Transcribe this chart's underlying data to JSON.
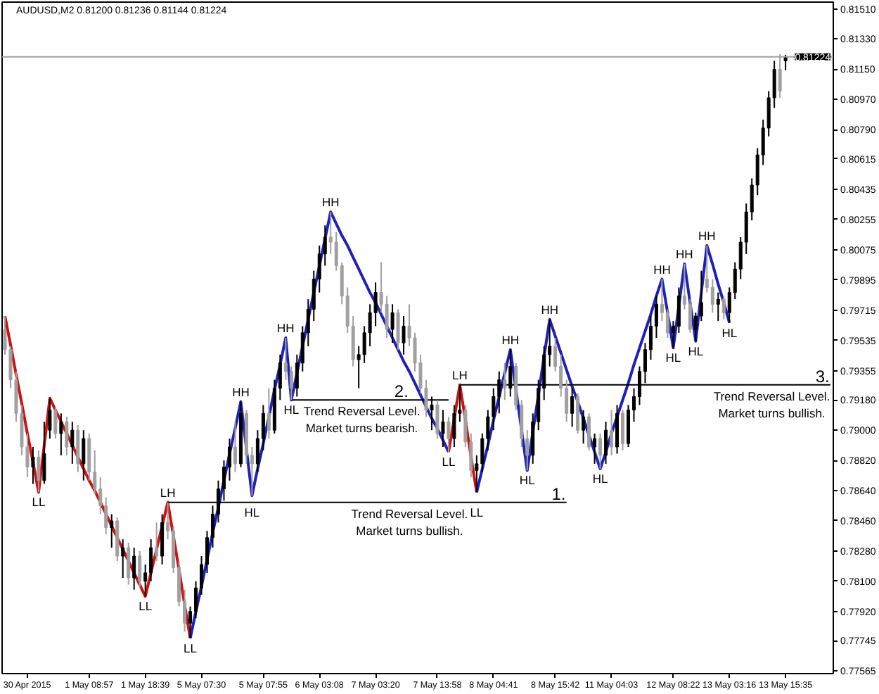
{
  "chart_data": {
    "type": "candlestick",
    "title": "AUDUSD,M2 0.81200 0.81236 0.81144 0.81224",
    "categories": [
      null,
      null,
      null,
      null,
      "30 Apr 2015",
      null,
      null,
      null,
      null,
      null,
      null,
      null,
      null,
      null,
      null,
      "1 May 08:57",
      null,
      null,
      null,
      null,
      null,
      null,
      null,
      null,
      null,
      "1 May 18:39",
      null,
      null,
      null,
      null,
      null,
      null,
      null,
      null,
      null,
      "5 May 07:30",
      null,
      null,
      null,
      null,
      null,
      null,
      null,
      null,
      null,
      null,
      "5 May 07:55",
      null,
      null,
      null,
      null,
      null,
      null,
      null,
      null,
      null,
      "6 May 03:08",
      null,
      null,
      null,
      null,
      null,
      null,
      null,
      null,
      null,
      "7 May 03:20",
      null,
      null,
      null,
      null,
      null,
      null,
      null,
      null,
      null,
      null,
      "7 May 13:58",
      null,
      null,
      null,
      null,
      null,
      null,
      null,
      null,
      null,
      "8 May 04:41",
      null,
      null,
      null,
      null,
      null,
      null,
      null,
      null,
      null,
      null,
      "8 May 15:42",
      null,
      null,
      null,
      null,
      null,
      null,
      null,
      null,
      null,
      "11 May 04:03",
      null,
      null,
      null,
      null,
      null,
      null,
      null,
      null,
      null,
      null,
      "12 May 08:22",
      null,
      null,
      null,
      null,
      null,
      null,
      null,
      null,
      null,
      "13 May 03:16",
      null,
      null,
      null,
      null,
      null,
      null,
      null,
      null,
      null,
      "13 May 15:35",
      null,
      null,
      null,
      null,
      null,
      null,
      null,
      null
    ],
    "ohlc": [
      [
        0.796,
        0.7968,
        0.7945,
        0.7948
      ],
      [
        0.7948,
        0.795,
        0.7925,
        0.793
      ],
      [
        0.793,
        0.7935,
        0.7905,
        0.791
      ],
      [
        0.791,
        0.7915,
        0.7885,
        0.789
      ],
      [
        0.789,
        0.7898,
        0.7872,
        0.7878
      ],
      [
        0.7878,
        0.789,
        0.7868,
        0.7884
      ],
      [
        0.7884,
        0.7888,
        0.7863,
        0.787
      ],
      [
        0.787,
        0.7905,
        0.7868,
        0.7886
      ],
      [
        0.79,
        0.7919,
        0.7895,
        0.7912
      ],
      [
        0.7912,
        0.7914,
        0.7895,
        0.7898
      ],
      [
        0.7898,
        0.791,
        0.7885,
        0.7905
      ],
      [
        0.7905,
        0.7908,
        0.7885,
        0.789
      ],
      [
        0.789,
        0.7905,
        0.788,
        0.79
      ],
      [
        0.79,
        0.7903,
        0.7875,
        0.788
      ],
      [
        0.788,
        0.79,
        0.787,
        0.7895
      ],
      [
        0.7895,
        0.7898,
        0.787,
        0.7875
      ],
      [
        0.7875,
        0.7888,
        0.7862,
        0.7865
      ],
      [
        0.7865,
        0.7872,
        0.785,
        0.7855
      ],
      [
        0.7855,
        0.786,
        0.7838,
        0.7842
      ],
      [
        0.7842,
        0.785,
        0.783,
        0.7846
      ],
      [
        0.7846,
        0.7848,
        0.7822,
        0.7825
      ],
      [
        0.7825,
        0.7835,
        0.7812,
        0.783
      ],
      [
        0.783,
        0.7833,
        0.7808,
        0.7812
      ],
      [
        0.7812,
        0.783,
        0.7805,
        0.7825
      ],
      [
        0.7825,
        0.7828,
        0.7806,
        0.781
      ],
      [
        0.781,
        0.782,
        0.7801,
        0.7815
      ],
      [
        0.7815,
        0.7835,
        0.781,
        0.783
      ],
      [
        0.783,
        0.7845,
        0.7822,
        0.7825
      ],
      [
        0.7825,
        0.785,
        0.782,
        0.7845
      ],
      [
        0.7845,
        0.7857,
        0.7835,
        0.784
      ],
      [
        0.784,
        0.7843,
        0.7815,
        0.7818
      ],
      [
        0.7818,
        0.7822,
        0.7795,
        0.7798
      ],
      [
        0.7798,
        0.7805,
        0.778,
        0.7785
      ],
      [
        0.7785,
        0.7795,
        0.7776,
        0.7792
      ],
      [
        0.7792,
        0.781,
        0.7788,
        0.7806
      ],
      [
        0.7806,
        0.7825,
        0.7802,
        0.782
      ],
      [
        0.782,
        0.784,
        0.7815,
        0.7836
      ],
      [
        0.7836,
        0.7855,
        0.783,
        0.785
      ],
      [
        0.785,
        0.787,
        0.7845,
        0.7865
      ],
      [
        0.7865,
        0.7882,
        0.7858,
        0.7878
      ],
      [
        0.7878,
        0.7895,
        0.787,
        0.789
      ],
      [
        0.789,
        0.7905,
        0.7875,
        0.788
      ],
      [
        0.788,
        0.7917,
        0.7878,
        0.791
      ],
      [
        0.791,
        0.7912,
        0.788,
        0.7885
      ],
      [
        0.7885,
        0.789,
        0.7861,
        0.788
      ],
      [
        0.788,
        0.79,
        0.7875,
        0.7895
      ],
      [
        0.7895,
        0.7915,
        0.7888,
        0.791
      ],
      [
        0.791,
        0.7925,
        0.7895,
        0.79
      ],
      [
        0.79,
        0.793,
        0.7898,
        0.7925
      ],
      [
        0.7925,
        0.7945,
        0.7918,
        0.794
      ],
      [
        0.794,
        0.7955,
        0.793,
        0.7935
      ],
      [
        0.7935,
        0.7938,
        0.7918,
        0.7925
      ],
      [
        0.7925,
        0.7945,
        0.792,
        0.794
      ],
      [
        0.794,
        0.7962,
        0.7935,
        0.7958
      ],
      [
        0.7958,
        0.7978,
        0.795,
        0.7972
      ],
      [
        0.7972,
        0.7995,
        0.7965,
        0.799
      ],
      [
        0.799,
        0.801,
        0.7982,
        0.8005
      ],
      [
        0.8005,
        0.8022,
        0.7998,
        0.8015
      ],
      [
        0.8015,
        0.803,
        0.8005,
        0.8012
      ],
      [
        0.8012,
        0.8018,
        0.7995,
        0.7998
      ],
      [
        0.7998,
        0.8,
        0.7975,
        0.798
      ],
      [
        0.798,
        0.7985,
        0.7958,
        0.7962
      ],
      [
        0.7962,
        0.7968,
        0.7938,
        0.7942
      ],
      [
        0.7942,
        0.795,
        0.7925,
        0.7945
      ],
      [
        0.7945,
        0.7962,
        0.794,
        0.7958
      ],
      [
        0.7958,
        0.7975,
        0.795,
        0.797
      ],
      [
        0.797,
        0.7988,
        0.7962,
        0.7982
      ],
      [
        0.7982,
        0.8,
        0.797,
        0.7975
      ],
      [
        0.7975,
        0.798,
        0.7955,
        0.796
      ],
      [
        0.796,
        0.7975,
        0.7952,
        0.797
      ],
      [
        0.797,
        0.7972,
        0.7948,
        0.7952
      ],
      [
        0.7952,
        0.7968,
        0.7945,
        0.7962
      ],
      [
        0.7962,
        0.7975,
        0.795,
        0.7955
      ],
      [
        0.7955,
        0.7958,
        0.7935,
        0.794
      ],
      [
        0.794,
        0.7945,
        0.7922,
        0.7925
      ],
      [
        0.7925,
        0.793,
        0.7908,
        0.7912
      ],
      [
        0.7912,
        0.792,
        0.79,
        0.7915
      ],
      [
        0.7915,
        0.7918,
        0.7895,
        0.7898
      ],
      [
        0.7898,
        0.7912,
        0.789,
        0.7905
      ],
      [
        0.7905,
        0.7908,
        0.7887,
        0.7895
      ],
      [
        0.7895,
        0.7915,
        0.789,
        0.791
      ],
      [
        0.791,
        0.7927,
        0.7905,
        0.7912
      ],
      [
        0.7912,
        0.7915,
        0.789,
        0.7893
      ],
      [
        0.7893,
        0.7898,
        0.7872,
        0.7876
      ],
      [
        0.7876,
        0.7885,
        0.7863,
        0.788
      ],
      [
        0.788,
        0.7898,
        0.7875,
        0.7895
      ],
      [
        0.7895,
        0.7912,
        0.7888,
        0.7908
      ],
      [
        0.7908,
        0.7925,
        0.79,
        0.792
      ],
      [
        0.792,
        0.7935,
        0.791,
        0.793
      ],
      [
        0.793,
        0.794,
        0.7918,
        0.7925
      ],
      [
        0.7925,
        0.7948,
        0.792,
        0.7938
      ],
      [
        0.7938,
        0.794,
        0.7912,
        0.7915
      ],
      [
        0.7915,
        0.7918,
        0.789,
        0.7895
      ],
      [
        0.7895,
        0.79,
        0.7876,
        0.7885
      ],
      [
        0.7885,
        0.791,
        0.788,
        0.7905
      ],
      [
        0.7905,
        0.793,
        0.79,
        0.7925
      ],
      [
        0.7925,
        0.795,
        0.7918,
        0.7945
      ],
      [
        0.7945,
        0.7966,
        0.7938,
        0.795
      ],
      [
        0.795,
        0.7955,
        0.7935,
        0.7938
      ],
      [
        0.7938,
        0.7945,
        0.792,
        0.7925
      ],
      [
        0.7925,
        0.793,
        0.7905,
        0.791
      ],
      [
        0.791,
        0.7925,
        0.7902,
        0.792
      ],
      [
        0.792,
        0.7922,
        0.7898,
        0.79
      ],
      [
        0.79,
        0.7912,
        0.7892,
        0.7908
      ],
      [
        0.7908,
        0.791,
        0.7888,
        0.789
      ],
      [
        0.789,
        0.7898,
        0.788,
        0.7895
      ],
      [
        0.7895,
        0.7898,
        0.7877,
        0.7885
      ],
      [
        0.7885,
        0.7905,
        0.788,
        0.79
      ],
      [
        0.79,
        0.7912,
        0.7885,
        0.789
      ],
      [
        0.789,
        0.7915,
        0.7886,
        0.791
      ],
      [
        0.791,
        0.7912,
        0.7888,
        0.7892
      ],
      [
        0.7892,
        0.7915,
        0.789,
        0.7912
      ],
      [
        0.7912,
        0.7925,
        0.7905,
        0.792
      ],
      [
        0.792,
        0.7938,
        0.7915,
        0.7935
      ],
      [
        0.7935,
        0.7952,
        0.7928,
        0.7948
      ],
      [
        0.7948,
        0.7968,
        0.7942,
        0.7962
      ],
      [
        0.7962,
        0.798,
        0.7955,
        0.7975
      ],
      [
        0.7975,
        0.799,
        0.7965,
        0.797
      ],
      [
        0.797,
        0.7972,
        0.7955,
        0.7958
      ],
      [
        0.7958,
        0.7965,
        0.7949,
        0.7962
      ],
      [
        0.7962,
        0.7985,
        0.7958,
        0.798
      ],
      [
        0.798,
        0.7999,
        0.7972,
        0.7975
      ],
      [
        0.7975,
        0.7978,
        0.7958,
        0.796
      ],
      [
        0.796,
        0.797,
        0.7953,
        0.7968
      ],
      [
        0.7968,
        0.7995,
        0.7965,
        0.7976
      ],
      [
        0.799,
        0.801,
        0.7982,
        0.7985
      ],
      [
        0.7985,
        0.799,
        0.797,
        0.7975
      ],
      [
        0.7975,
        0.7982,
        0.7965,
        0.7978
      ],
      [
        0.7978,
        0.798,
        0.7966,
        0.797
      ],
      [
        0.797,
        0.7985,
        0.7964,
        0.7982
      ],
      [
        0.7982,
        0.8,
        0.7978,
        0.7996
      ],
      [
        0.7996,
        0.8015,
        0.799,
        0.8012
      ],
      [
        0.8012,
        0.8035,
        0.8005,
        0.803
      ],
      [
        0.803,
        0.805,
        0.8025,
        0.8046
      ],
      [
        0.8046,
        0.8068,
        0.804,
        0.8064
      ],
      [
        0.8064,
        0.8085,
        0.8058,
        0.808
      ],
      [
        0.808,
        0.8102,
        0.8075,
        0.8098
      ],
      [
        0.8098,
        0.812,
        0.8092,
        0.8115
      ],
      [
        0.8115,
        0.8124,
        0.8098,
        0.8102
      ],
      [
        0.812,
        0.81236,
        0.81144,
        0.81224
      ],
      null,
      null,
      null,
      null,
      null,
      null,
      null,
      null
    ],
    "colors": [
      "#a0a0a0",
      "#a0a0a0",
      "#a0a0a0",
      "#a0a0a0",
      "#a0a0a0",
      "#000000",
      "#a0a0a0",
      "#000000",
      "#000000",
      "#a0a0a0",
      "#000000",
      "#a0a0a0",
      "#000000",
      "#a0a0a0",
      "#000000",
      "#a0a0a0",
      "#a0a0a0",
      "#a0a0a0",
      "#a0a0a0",
      "#000000",
      "#a0a0a0",
      "#000000",
      "#a0a0a0",
      "#000000",
      "#a0a0a0",
      "#000000",
      "#000000",
      "#a0a0a0",
      "#000000",
      "#a0a0a0",
      "#a0a0a0",
      "#a0a0a0",
      "#a0a0a0",
      "#000000",
      "#000000",
      "#000000",
      "#000000",
      "#000000",
      "#000000",
      "#000000",
      "#000000",
      "#a0a0a0",
      "#000000",
      "#a0a0a0",
      "#a0a0a0",
      "#000000",
      "#000000",
      "#a0a0a0",
      "#000000",
      "#000000",
      "#a0a0a0",
      "#a0a0a0",
      "#000000",
      "#000000",
      "#000000",
      "#000000",
      "#000000",
      "#000000",
      "#a0a0a0",
      "#a0a0a0",
      "#a0a0a0",
      "#a0a0a0",
      "#a0a0a0",
      "#000000",
      "#000000",
      "#000000",
      "#000000",
      "#a0a0a0",
      "#a0a0a0",
      "#000000",
      "#a0a0a0",
      "#000000",
      "#a0a0a0",
      "#a0a0a0",
      "#a0a0a0",
      "#a0a0a0",
      "#000000",
      "#a0a0a0",
      "#000000",
      "#a0a0a0",
      "#000000",
      "#000000",
      "#a0a0a0",
      "#a0a0a0",
      "#000000",
      "#000000",
      "#000000",
      "#000000",
      "#000000",
      "#a0a0a0",
      "#000000",
      "#a0a0a0",
      "#a0a0a0",
      "#a0a0a0",
      "#000000",
      "#000000",
      "#000000",
      "#000000",
      "#a0a0a0",
      "#a0a0a0",
      "#a0a0a0",
      "#000000",
      "#a0a0a0",
      "#000000",
      "#a0a0a0",
      "#000000",
      "#a0a0a0",
      "#000000",
      "#a0a0a0",
      "#000000",
      "#a0a0a0",
      "#000000",
      "#000000",
      "#000000",
      "#000000",
      "#000000",
      "#000000",
      "#a0a0a0",
      "#a0a0a0",
      "#000000",
      "#000000",
      "#a0a0a0",
      "#a0a0a0",
      "#000000",
      "#000000",
      "#a0a0a0",
      "#a0a0a0",
      "#000000",
      "#a0a0a0",
      "#000000",
      "#000000",
      "#000000",
      "#000000",
      "#000000",
      "#000000",
      "#000000",
      "#000000",
      "#000000",
      "#a0a0a0",
      "#000000",
      null,
      null,
      null,
      null,
      null,
      null,
      null,
      null
    ],
    "ylim": [
      0.7755,
      0.8155
    ],
    "yticks": [
      {
        "value": 0.8151,
        "label": "0.81510"
      },
      {
        "value": 0.8133,
        "label": "0.81330"
      },
      {
        "value": 0.8115,
        "label": "0.81150"
      },
      {
        "value": 0.8097,
        "label": "0.80970"
      },
      {
        "value": 0.8079,
        "label": "0.80790"
      },
      0.80615,
      0.80435,
      0.80255,
      0.80075,
      0.79895,
      0.79715,
      0.79535,
      0.79355,
      {
        "value": 0.7918,
        "label": "0.79180"
      },
      {
        "value": 0.79,
        "label": "0.79000"
      },
      {
        "value": 0.7882,
        "label": "0.78820"
      },
      {
        "value": 0.7864,
        "label": "0.78640"
      },
      {
        "value": 0.7846,
        "label": "0.78460"
      },
      {
        "value": 0.7828,
        "label": "0.78280"
      },
      {
        "value": 0.781,
        "label": "0.78100"
      },
      {
        "value": 0.7792,
        "label": "0.77920"
      },
      0.77745,
      0.77565
    ],
    "series": [
      {
        "type": "line",
        "color": "#cc1111",
        "values": [
          0.7968,
          0.7951,
          0.7933,
          0.7916,
          0.7898,
          0.7881,
          0.7863,
          0.7891,
          0.7919,
          0.7912,
          0.7905,
          0.7898,
          0.7891,
          0.7884,
          0.7877,
          0.787,
          0.7864,
          0.7857,
          0.785,
          0.7843,
          0.7836,
          0.7829,
          0.7822,
          0.7815,
          0.7808,
          0.7801,
          0.7815,
          0.7829,
          0.7843,
          0.7857,
          0.7837,
          0.7817,
          0.7796,
          0.7776,
          null,
          null,
          null,
          null,
          null,
          null,
          null,
          null,
          null,
          null,
          null,
          null,
          null,
          null,
          null,
          null,
          null,
          null,
          null,
          null,
          null,
          null,
          null,
          null,
          null,
          null,
          null,
          null,
          null,
          null,
          null,
          null,
          null,
          null,
          null,
          null,
          null,
          null,
          null,
          null,
          null,
          null,
          null,
          null,
          null,
          0.7887,
          0.7907,
          0.7927,
          0.7906,
          0.7884,
          0.7863,
          null,
          null,
          null,
          null,
          null,
          null,
          null,
          null,
          null,
          null,
          null,
          null,
          null,
          null,
          null,
          null,
          null,
          null,
          null,
          null,
          null,
          null,
          null,
          null,
          null,
          null,
          null,
          null,
          null,
          null,
          null,
          null,
          null,
          null,
          null,
          null,
          null,
          null,
          null,
          null,
          null,
          null,
          null,
          null,
          null,
          null,
          null,
          null,
          null,
          null,
          null,
          null,
          null,
          null,
          null,
          null,
          null,
          null,
          null,
          null,
          null,
          null,
          null
        ]
      },
      {
        "type": "line",
        "color": "#2020b8",
        "values": [
          null,
          null,
          null,
          null,
          null,
          null,
          null,
          null,
          null,
          null,
          null,
          null,
          null,
          null,
          null,
          null,
          null,
          null,
          null,
          null,
          null,
          null,
          null,
          null,
          null,
          null,
          null,
          null,
          null,
          null,
          null,
          null,
          null,
          0.7776,
          0.7792,
          0.7807,
          0.7823,
          0.7839,
          0.7854,
          0.787,
          0.7886,
          0.7901,
          0.7917,
          0.7889,
          0.7861,
          0.7877,
          0.7892,
          0.7908,
          0.7924,
          0.7939,
          0.7955,
          0.7918,
          0.7934,
          0.795,
          0.7966,
          0.7982,
          0.7998,
          0.8014,
          0.803,
          0.8023,
          0.8016,
          0.801,
          0.8003,
          0.7996,
          0.7989,
          0.7982,
          0.7976,
          0.7969,
          0.7962,
          0.7955,
          0.7948,
          0.7941,
          0.7935,
          0.7928,
          0.7921,
          0.7914,
          0.7907,
          0.7901,
          0.7894,
          0.7887,
          null,
          null,
          null,
          null,
          0.7863,
          0.7877,
          0.7891,
          0.7906,
          0.792,
          0.7934,
          0.7948,
          0.7924,
          0.79,
          0.7876,
          0.7899,
          0.7921,
          0.7944,
          0.7966,
          0.7956,
          0.7946,
          0.7936,
          0.7926,
          0.7917,
          0.7907,
          0.7897,
          0.7887,
          0.7877,
          0.7887,
          0.7898,
          0.7908,
          0.7918,
          0.7928,
          0.7939,
          0.7949,
          0.7959,
          0.7969,
          0.798,
          0.799,
          0.797,
          0.7949,
          0.7974,
          0.7999,
          0.7976,
          0.7953,
          0.7982,
          0.801,
          0.7999,
          0.7987,
          0.7976,
          0.7964,
          null,
          null,
          null,
          null,
          null,
          null,
          null,
          null,
          null,
          null,
          null,
          null,
          null,
          null,
          null,
          null,
          null,
          null
        ]
      },
      {
        "type": "line",
        "color": "#000000",
        "values": [
          null,
          null,
          null,
          null,
          null,
          null,
          null,
          null,
          null,
          null,
          null,
          null,
          null,
          null,
          null,
          null,
          null,
          null,
          null,
          null,
          null,
          null,
          null,
          null,
          null,
          null,
          null,
          null,
          null,
          0.7857,
          0.7857,
          0.7857,
          0.7857,
          0.7857,
          0.7857,
          0.7857,
          0.7857,
          0.7857,
          0.7857,
          0.7857,
          0.7857,
          0.7857,
          0.7857,
          0.7857,
          0.7857,
          0.7857,
          0.7857,
          0.7857,
          0.7857,
          0.7857,
          0.7857,
          0.7857,
          0.7857,
          0.7857,
          0.7857,
          0.7857,
          0.7857,
          0.7857,
          0.7857,
          0.7857,
          0.7857,
          0.7857,
          0.7857,
          0.7857,
          0.7857,
          0.7857,
          0.7857,
          0.7857,
          0.7857,
          0.7857,
          0.7857,
          0.7857,
          0.7857,
          0.7857,
          0.7857,
          0.7857,
          0.7857,
          0.7857,
          0.7857,
          0.7857,
          0.7857,
          0.7857,
          0.7857,
          0.7857,
          0.7857,
          0.7857,
          0.7857,
          0.7857,
          0.7857,
          0.7857,
          0.7857,
          0.7857,
          0.7857,
          0.7857,
          0.7857,
          0.7857,
          0.7857,
          0.7857,
          0.7857,
          0.7857,
          0.7857,
          null,
          null,
          null,
          null,
          null,
          null,
          null,
          null,
          null,
          null,
          null,
          null,
          null,
          null,
          null,
          null,
          null,
          null,
          null,
          null,
          null,
          null,
          null,
          null,
          null,
          null,
          null,
          null,
          null,
          null,
          null,
          null,
          null,
          null,
          null,
          null,
          null,
          null,
          null,
          null,
          null,
          null,
          null,
          null,
          null,
          null,
          null
        ]
      },
      {
        "type": "line",
        "color": "#000000",
        "values": [
          null,
          null,
          null,
          null,
          null,
          null,
          null,
          null,
          null,
          null,
          null,
          null,
          null,
          null,
          null,
          null,
          null,
          null,
          null,
          null,
          null,
          null,
          null,
          null,
          null,
          null,
          null,
          null,
          null,
          null,
          null,
          null,
          null,
          null,
          null,
          null,
          null,
          null,
          null,
          null,
          null,
          null,
          null,
          null,
          null,
          null,
          null,
          null,
          null,
          null,
          null,
          0.7918,
          0.7918,
          0.7918,
          0.7918,
          0.7918,
          0.7918,
          0.7918,
          0.7918,
          0.7918,
          0.7918,
          0.7918,
          0.7918,
          0.7918,
          0.7918,
          0.7918,
          0.7918,
          0.7918,
          0.7918,
          0.7918,
          0.7918,
          0.7918,
          0.7918,
          0.7918,
          0.7918,
          0.7918,
          0.7918,
          0.7918,
          0.7918,
          0.7918,
          null,
          null,
          null,
          null,
          null,
          null,
          null,
          null,
          null,
          null,
          null,
          null,
          null,
          null,
          null,
          null,
          null,
          null,
          null,
          null,
          null,
          null,
          null,
          null,
          null,
          null,
          null,
          null,
          null,
          null,
          null,
          null,
          null,
          null,
          null,
          null,
          null,
          null,
          null,
          null,
          null,
          null,
          null,
          null,
          null,
          null,
          null,
          null,
          null,
          null,
          null,
          null,
          null,
          null,
          null,
          null,
          null,
          null,
          null,
          null,
          null,
          null,
          null,
          null,
          null,
          null,
          null,
          null
        ]
      },
      {
        "type": "line",
        "color": "#000000",
        "values": [
          null,
          null,
          null,
          null,
          null,
          null,
          null,
          null,
          null,
          null,
          null,
          null,
          null,
          null,
          null,
          null,
          null,
          null,
          null,
          null,
          null,
          null,
          null,
          null,
          null,
          null,
          null,
          null,
          null,
          null,
          null,
          null,
          null,
          null,
          null,
          null,
          null,
          null,
          null,
          null,
          null,
          null,
          null,
          null,
          null,
          null,
          null,
          null,
          null,
          null,
          null,
          null,
          null,
          null,
          null,
          null,
          null,
          null,
          null,
          null,
          null,
          null,
          null,
          null,
          null,
          null,
          null,
          null,
          null,
          null,
          null,
          null,
          null,
          null,
          null,
          null,
          null,
          null,
          null,
          null,
          null,
          0.7927,
          0.7927,
          0.7927,
          0.7927,
          0.7927,
          0.7927,
          0.7927,
          0.7927,
          0.7927,
          0.7927,
          0.7927,
          0.7927,
          0.7927,
          0.7927,
          0.7927,
          0.7927,
          0.7927,
          0.7927,
          0.7927,
          0.7927,
          0.7927,
          0.7927,
          0.7927,
          0.7927,
          0.7927,
          0.7927,
          0.7927,
          0.7927,
          0.7927,
          0.7927,
          0.7927,
          0.7927,
          0.7927,
          0.7927,
          0.7927,
          0.7927,
          0.7927,
          0.7927,
          0.7927,
          0.7927,
          0.7927,
          0.7927,
          0.7927,
          0.7927,
          0.7927,
          0.7927,
          0.7927,
          0.7927,
          0.7927,
          0.7927,
          0.7927,
          0.7927,
          0.7927,
          0.7927,
          0.7927,
          0.7927,
          0.7927,
          0.7927,
          0.7927,
          0.7927,
          0.7927,
          0.7927,
          0.7927,
          0.7927,
          0.7927,
          0.7927,
          0.7927
        ]
      }
    ],
    "ref_lines": [
      {
        "axis": "y",
        "value": 0.81224,
        "label": "0.81224",
        "color": "#a0a0a0"
      }
    ],
    "annotations": [
      {
        "text": "LL",
        "y": 0.7863
      },
      {
        "text": "LL",
        "y": 0.7801
      },
      {
        "text": "LH",
        "y": 0.7857
      },
      {
        "text": "LL",
        "y": 0.7776
      },
      {
        "text": "HH",
        "y": 0.7917
      },
      {
        "text": "HL",
        "y": 0.7861
      },
      {
        "text": "HH",
        "y": 0.7955
      },
      {
        "text": "HL",
        "y": 0.7918
      },
      {
        "text": "HH",
        "y": 0.803
      },
      {
        "text": "LL",
        "y": 0.7887
      },
      {
        "text": "LH",
        "y": 0.7927
      },
      {
        "text": "LL",
        "y": 0.7863
      },
      {
        "text": "HH",
        "y": 0.7948
      },
      {
        "text": "HL",
        "y": 0.7876
      },
      {
        "text": "HH",
        "y": 0.7966
      },
      {
        "text": "HL",
        "y": 0.7877
      },
      {
        "text": "HH",
        "y": 0.799
      },
      {
        "text": "HL",
        "y": 0.7949
      },
      {
        "text": "HH",
        "y": 0.7999
      },
      {
        "text": "HL",
        "y": 0.7953
      },
      {
        "text": "HH",
        "y": 0.801
      },
      {
        "text": "HL",
        "y": 0.7964
      },
      {
        "text": "1.",
        "y": 0.7857
      },
      {
        "text": "2.",
        "y": 0.7918
      },
      {
        "text": "3.",
        "y": 0.7927
      },
      {
        "text": "Trend Reversal Level.\nMarket turns bullish.",
        "y": 0.7857
      },
      {
        "text": "Trend Reversal Level.\nMarket turns bearish.",
        "y": 0.7918
      },
      {
        "text": "Trend Reversal Level.\nMarket turns bullish.",
        "y": 0.7927
      }
    ]
  }
}
